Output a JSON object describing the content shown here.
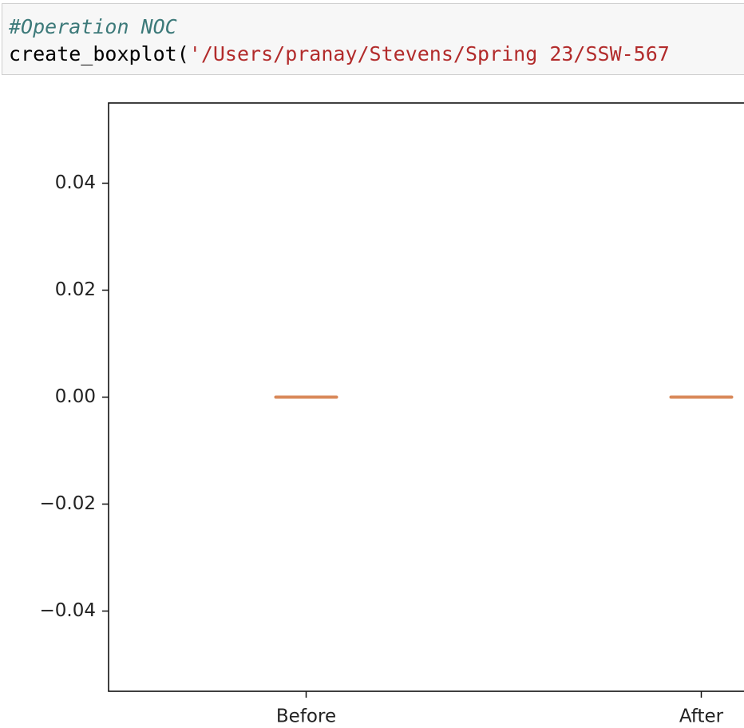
{
  "code": {
    "comment": "#Operation NOC",
    "call": "create_boxplot(",
    "string": "'/Users/pranay/Stevens/Spring 23/SSW-567"
  },
  "chart_data": {
    "type": "box",
    "categories": [
      "Before",
      "After"
    ],
    "boxes": [
      {
        "min": 0,
        "q1": 0,
        "median": 0,
        "q3": 0,
        "max": 0
      },
      {
        "min": 0,
        "q1": 0,
        "median": 0,
        "q3": 0,
        "max": 0
      }
    ],
    "median_color": "#d9895a",
    "ylim": [
      -0.055,
      0.055
    ],
    "yticks": [
      {
        "value": -0.04,
        "label": "−0.04"
      },
      {
        "value": -0.02,
        "label": "−0.02"
      },
      {
        "value": 0,
        "label": "0.00"
      },
      0.02,
      0.04
    ]
  }
}
